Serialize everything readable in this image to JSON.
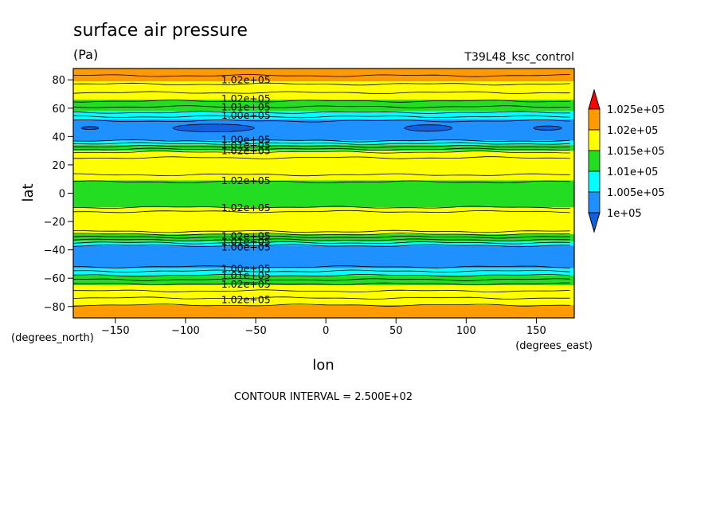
{
  "chart_data": {
    "type": "contour",
    "title": "surface air pressure",
    "units": "(Pa)",
    "run_label": "T39L48_ksc_control",
    "xlabel": "lon",
    "ylabel": "lat",
    "x_units": "(degrees_east)",
    "y_units": "(degrees_north)",
    "xlim": [
      -180,
      177
    ],
    "ylim": [
      -88,
      88
    ],
    "x_ticks": [
      -150,
      -100,
      -50,
      0,
      50,
      100,
      150
    ],
    "y_ticks": [
      -80,
      -60,
      -40,
      -20,
      0,
      20,
      40,
      60,
      80
    ],
    "contour_interval_label": "CONTOUR INTERVAL = 2.500E+02",
    "colorbar": {
      "labels": [
        "1.025e+05",
        "1.02e+05",
        "1.015e+05",
        "1.01e+05",
        "1.005e+05",
        "1e+05"
      ],
      "colors": [
        "#ff9a00",
        "#ffff00",
        "#22dd22",
        "#00ffff",
        "#1e90ff"
      ],
      "over_color": "#ff0000",
      "under_color": "#1060e0"
    },
    "bands": [
      {
        "from": 88,
        "to": 79,
        "color": "#ff9a00"
      },
      {
        "from": 79,
        "to": 66,
        "color": "#ffff00"
      },
      {
        "from": 66,
        "to": 58,
        "color": "#22dd22"
      },
      {
        "from": 58,
        "to": 52,
        "color": "#00ffff"
      },
      {
        "from": 52,
        "to": 37,
        "color": "#1e90ff"
      },
      {
        "from": 37,
        "to": 34,
        "color": "#00ffff"
      },
      {
        "from": 34,
        "to": 30,
        "color": "#22dd22"
      },
      {
        "from": 30,
        "to": 9,
        "color": "#ffff00"
      },
      {
        "from": 9,
        "to": -10,
        "color": "#22dd22"
      },
      {
        "from": -10,
        "to": -29,
        "color": "#ffff00"
      },
      {
        "from": -29,
        "to": -34,
        "color": "#22dd22"
      },
      {
        "from": -34,
        "to": -37,
        "color": "#00ffff"
      },
      {
        "from": -37,
        "to": -53,
        "color": "#1e90ff"
      },
      {
        "from": -53,
        "to": -58,
        "color": "#00ffff"
      },
      {
        "from": -58,
        "to": -65,
        "color": "#22dd22"
      },
      {
        "from": -65,
        "to": -79,
        "color": "#ffff00"
      },
      {
        "from": -79,
        "to": -88,
        "color": "#ff9a00"
      }
    ],
    "contour_levels": [
      83,
      77,
      71,
      65,
      61,
      57,
      54,
      51,
      37,
      35,
      33,
      31,
      29,
      25,
      13,
      8,
      -10,
      -13,
      -27,
      -29,
      -31,
      -33,
      -35,
      -37,
      -52,
      -55,
      -58,
      -61,
      -64,
      -69,
      -74,
      -79
    ],
    "low_pressure_cells": [
      {
        "lon": -80,
        "lat": 46,
        "width_deg": 58,
        "height_deg": 5.5
      },
      {
        "lon": 73,
        "lat": 46,
        "width_deg": 34,
        "height_deg": 4.5
      },
      {
        "lon": 158,
        "lat": 46,
        "width_deg": 20,
        "height_deg": 3
      },
      {
        "lon": -168,
        "lat": 46,
        "width_deg": 12,
        "height_deg": 2
      }
    ],
    "contour_labels": [
      {
        "text": "1.02e+05",
        "lon": -57,
        "lat": 80
      },
      {
        "text": "1.02e+05",
        "lon": -57,
        "lat": 67
      },
      {
        "text": "1.01e+05",
        "lon": -57,
        "lat": 61
      },
      {
        "text": "1.00e+05",
        "lon": -57,
        "lat": 55
      },
      {
        "text": "1.00e+05",
        "lon": -57,
        "lat": 38
      },
      {
        "text": "1.01e+05",
        "lon": -57,
        "lat": 34
      },
      {
        "text": "1.02e+05",
        "lon": -57,
        "lat": 30
      },
      {
        "text": "1.02e+05",
        "lon": -57,
        "lat": 9
      },
      {
        "text": "1.02e+05",
        "lon": -57,
        "lat": -10
      },
      {
        "text": "1.02e+05",
        "lon": -57,
        "lat": -30
      },
      {
        "text": "1.01e+05",
        "lon": -57,
        "lat": -34
      },
      {
        "text": "1.00e+05",
        "lon": -57,
        "lat": -38
      },
      {
        "text": "1.00e+05",
        "lon": -57,
        "lat": -53
      },
      {
        "text": "1.01e+05",
        "lon": -57,
        "lat": -58
      },
      {
        "text": "1.02e+05",
        "lon": -57,
        "lat": -64
      },
      {
        "text": "1.02e+05",
        "lon": -57,
        "lat": -75
      }
    ]
  }
}
